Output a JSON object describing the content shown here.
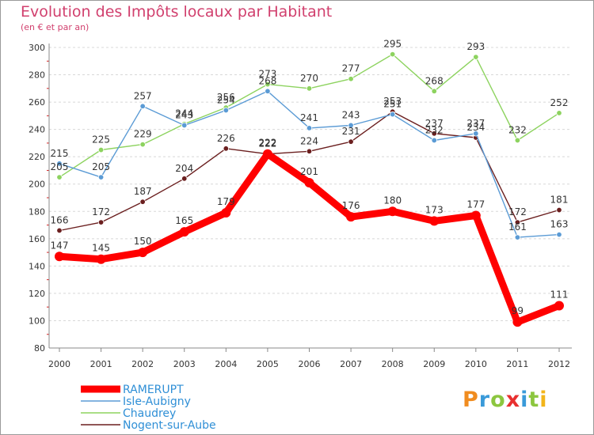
{
  "header": {
    "title": "Evolution des Impôts locaux par Habitant",
    "subtitle": "(en € et par an)"
  },
  "logo": {
    "letters": [
      "P",
      "r",
      "o",
      "x",
      "i",
      "t",
      "i"
    ],
    "colors": [
      "#f08c1f",
      "#3a9ad9",
      "#8cc63f",
      "#e8302f",
      "#3a9ad9",
      "#8cc63f",
      "#f2b51a"
    ]
  },
  "chart_data": {
    "type": "line",
    "title": "Evolution des Impôts locaux par Habitant",
    "subtitle": "(en € et par an)",
    "x": [
      "2000",
      "2001",
      "2002",
      "2003",
      "2004",
      "2005",
      "2006",
      "2007",
      "2008",
      "2009",
      "2010",
      "2011",
      "2012"
    ],
    "ylim": [
      80,
      300
    ],
    "yticks": [
      80,
      100,
      120,
      140,
      160,
      180,
      200,
      220,
      240,
      260,
      280,
      300
    ],
    "grid": "horizontal dashed",
    "legend": "bottom-left",
    "series": [
      {
        "name": "RAMERUPT",
        "color": "#ff0000",
        "values": [
          147,
          145,
          150,
          165,
          179,
          222,
          201,
          176,
          180,
          173,
          177,
          99,
          111
        ],
        "labels": [
          "147",
          "145",
          "150",
          "165",
          "179",
          "222",
          "201",
          "176",
          "180",
          "173",
          "177",
          "99",
          "111"
        ]
      },
      {
        "name": "Isle-Aubigny",
        "color": "#5b9bd5",
        "values": [
          215,
          205,
          257,
          243,
          254,
          268,
          241,
          243,
          251,
          232,
          237,
          161,
          163
        ],
        "labels": [
          "215",
          "205",
          "257",
          "243",
          "254",
          "268",
          "241",
          "243",
          "251",
          "232",
          "237",
          "161",
          "163"
        ]
      },
      {
        "name": "Chaudrey",
        "color": "#8dd35f",
        "values": [
          205,
          225,
          229,
          244,
          256,
          273,
          270,
          277,
          295,
          268,
          293,
          232,
          252
        ],
        "labels": [
          "205",
          "225",
          "229",
          "244",
          "256",
          "273",
          "270",
          "277",
          "295",
          "268",
          "293",
          "232",
          "252"
        ]
      },
      {
        "name": "Nogent-sur-Aube",
        "color": "#6b1f1f",
        "values": [
          166,
          172,
          187,
          204,
          226,
          222,
          224,
          231,
          253,
          237,
          234,
          172,
          181
        ],
        "labels": [
          "166",
          "172",
          "187",
          "204",
          "226",
          "222",
          "224",
          "231",
          "253",
          "237",
          "234",
          "172",
          "181"
        ]
      }
    ]
  }
}
